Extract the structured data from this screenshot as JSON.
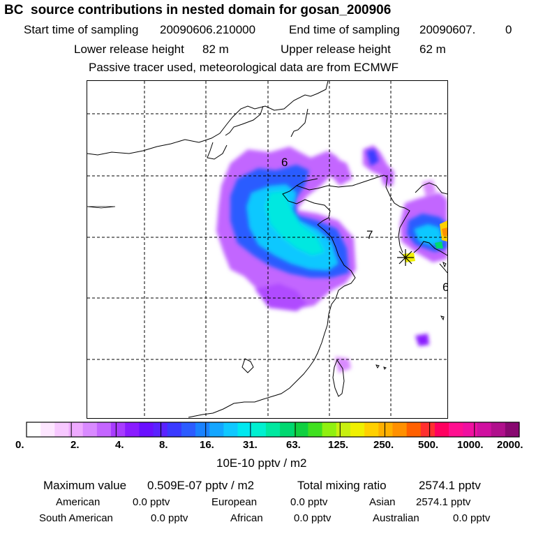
{
  "header": {
    "title": "BC  source contributions in nested domain for gosan_200906",
    "start_label": "Start time of sampling",
    "start_value": "20090606.210000",
    "end_label": "End time of sampling",
    "end_value": "20090607.",
    "end_suffix": "0",
    "lower_label": "Lower release height",
    "lower_value": "82 m",
    "upper_label": "Upper release height",
    "upper_value": "62 m",
    "tracer_note": "Passive tracer used, meteorological data are from ECMWF"
  },
  "map": {
    "day_labels": [
      "6",
      "7",
      "6"
    ],
    "receptor": "gosan-receptor"
  },
  "colorbar": {
    "ticks": [
      "0.",
      "2.",
      "4.",
      "8.",
      "16.",
      "31.",
      "63.",
      "125.",
      "250.",
      "500.",
      "1000.",
      "2000."
    ],
    "units": "10E-10 pptv / m2",
    "colors": [
      "#ffffff",
      "#fde6ff",
      "#f7c8ff",
      "#eeaaff",
      "#d98aff",
      "#c466ff",
      "#a83cff",
      "#8a1cff",
      "#6a10ff",
      "#5a22ff",
      "#3a3aff",
      "#2c5cff",
      "#1a82ff",
      "#14a6ff",
      "#10c8ff",
      "#00e8f0",
      "#00f0d0",
      "#00e8a0",
      "#00d870",
      "#10d040",
      "#40e020",
      "#90f010",
      "#c8f010",
      "#f0f000",
      "#ffd000",
      "#ffb000",
      "#ff9000",
      "#ff6000",
      "#ff3030",
      "#ff0060",
      "#ff1090",
      "#f010a0",
      "#d010a0",
      "#b0108c",
      "#880870"
    ]
  },
  "stats": {
    "max_label": "Maximum value",
    "max_value": "0.509E-07 pptv / m2",
    "total_label": "Total mixing ratio",
    "total_value": "2574.1 pptv",
    "regions": [
      {
        "name": "American",
        "value": "0.0 pptv"
      },
      {
        "name": "European",
        "value": "0.0 pptv"
      },
      {
        "name": "Asian",
        "value": "2574.1 pptv"
      },
      {
        "name": "South American",
        "value": "0.0 pptv"
      },
      {
        "name": "African",
        "value": "0.0 pptv"
      },
      {
        "name": "Australian",
        "value": "0.0 pptv"
      }
    ]
  }
}
